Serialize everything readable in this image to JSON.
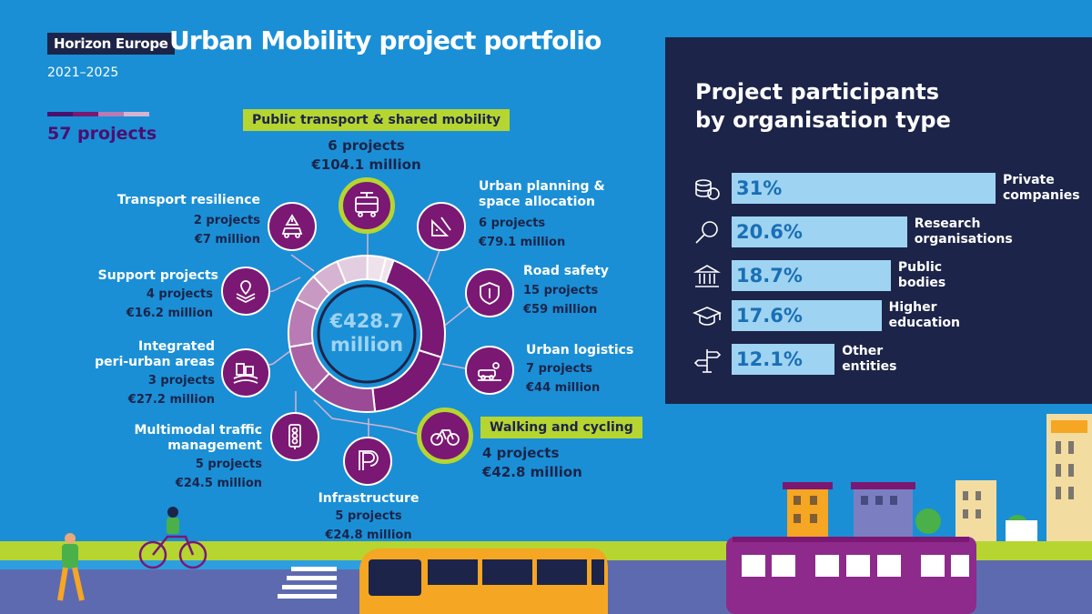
{
  "header": {
    "programme_tag": "Horizon Europe",
    "title": "Urban Mobility  project portfolio",
    "years": "2021–2025",
    "total_projects": "57 projects"
  },
  "donut": {
    "total_line1": "€428.7",
    "total_line2": "million",
    "colors": [
      "#7a1873",
      "#8a2f84",
      "#9b4a95",
      "#aa62a4",
      "#b97bb3",
      "#c89ac3",
      "#d6b3d0",
      "#e3cde0",
      "#efe2ed"
    ]
  },
  "categories": {
    "public_transport": {
      "name": "Public transport & shared mobility",
      "projects": "6 projects",
      "budget": "€104.1 million"
    },
    "urban_planning": {
      "name_line1": "Urban planning &",
      "name_line2": "space allocation",
      "projects": "6 projects",
      "budget": "€79.1 million"
    },
    "road_safety": {
      "name": "Road safety",
      "projects": "15 projects",
      "budget": "€59 million"
    },
    "urban_logistics": {
      "name": "Urban logistics",
      "projects": "7 projects",
      "budget": "€44 million"
    },
    "walking_cycling": {
      "name": "Walking and cycling",
      "projects": "4 projects",
      "budget": "€42.8 million"
    },
    "infrastructure": {
      "name": "Infrastructure",
      "projects": "5 projects",
      "budget": "€24.8 million"
    },
    "multimodal": {
      "name_line1": "Multimodal traffic",
      "name_line2": "management",
      "projects": "5 projects",
      "budget": "€24.5 million"
    },
    "peri_urban": {
      "name_line1": "Integrated",
      "name_line2": "peri-urban areas",
      "projects": "3 projects",
      "budget": "€27.2 million"
    },
    "support": {
      "name": "Support projects",
      "projects": "4 projects",
      "budget": "€16.2 million"
    },
    "resilience": {
      "name": "Transport resilience",
      "projects": "2 projects",
      "budget": "€7 million"
    }
  },
  "participants": {
    "title_line1": "Project participants",
    "title_line2": "by organisation type",
    "rows": [
      {
        "value_label": "31%",
        "pct": 31,
        "name_line1": "Private",
        "name_line2": "companies",
        "icon": "coins-icon"
      },
      {
        "value_label": "20.6%",
        "pct": 20.6,
        "name_line1": "Research",
        "name_line2": "organisations",
        "icon": "magnifier-icon"
      },
      {
        "value_label": "18.7%",
        "pct": 18.7,
        "name_line1": "Public",
        "name_line2": "bodies",
        "icon": "government-building-icon"
      },
      {
        "value_label": "17.6%",
        "pct": 17.6,
        "name_line1": "Higher",
        "name_line2": "education",
        "icon": "graduation-cap-icon"
      },
      {
        "value_label": "12.1%",
        "pct": 12.1,
        "name_line1": "Other",
        "name_line2": "entities",
        "icon": "signpost-icon"
      }
    ]
  },
  "chart_data": [
    {
      "type": "pie",
      "subtype": "donut",
      "total": "€428.7 million",
      "categories": [
        "Public transport & shared mobility",
        "Urban planning & space allocation",
        "Road safety",
        "Urban logistics",
        "Walking and cycling",
        "Infrastructure",
        "Multimodal traffic management",
        "Integrated peri-urban areas",
        "Support projects",
        "Transport resilience"
      ],
      "values": [
        104.1,
        79.1,
        59,
        44,
        42.8,
        24.8,
        24.5,
        27.2,
        16.2,
        7
      ],
      "projects": [
        6,
        6,
        15,
        7,
        4,
        5,
        5,
        3,
        4,
        2
      ],
      "unit": "€ million"
    },
    {
      "type": "bar",
      "orientation": "horizontal",
      "title": "Project participants by organisation type",
      "categories": [
        "Private companies",
        "Research organisations",
        "Public bodies",
        "Higher education",
        "Other entities"
      ],
      "values": [
        31,
        20.6,
        18.7,
        17.6,
        12.1
      ],
      "unit": "%"
    }
  ]
}
